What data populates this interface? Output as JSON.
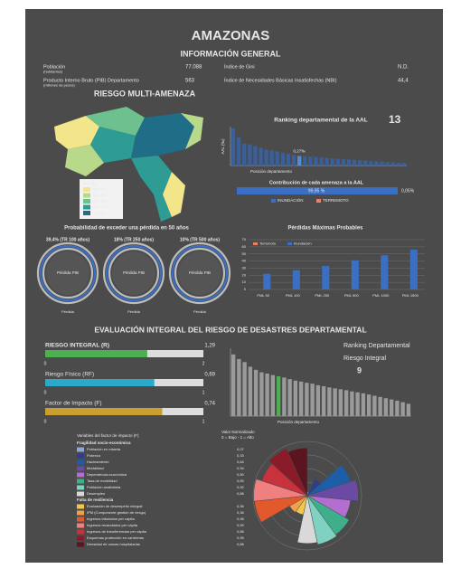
{
  "title": "AMAZONAS",
  "general": {
    "heading": "INFORMACIÓN GENERAL",
    "rows": [
      {
        "label": "Población",
        "note": "(habitantes)",
        "value": "77.088",
        "label2": "Índice de Gini",
        "value2": "N.D."
      },
      {
        "label": "Producto Interno Bruto (PIB) Departamento",
        "note": "(millones de pesos)",
        "value": "563",
        "label2": "Índice de Necesidades Básicas Insatisfechas (NBI)",
        "value2": "44,4"
      }
    ]
  },
  "multi": {
    "heading": "RIESGO MULTI-AMENAZA",
    "map_legend": {
      "title": "AAL (‰)",
      "items": [
        "0,0 - 0,1",
        "0,1 - 0,3",
        "0,3 - 0,5",
        "0,5 - 1,0",
        "1,0 - 2,0"
      ],
      "colors": [
        "#f3e58a",
        "#b9d98a",
        "#6cc18e",
        "#2e9c94",
        "#1f6d86"
      ]
    },
    "ranking": {
      "title": "Ranking departamental de la AAL",
      "rank": 13,
      "y_label": "AAL (‰)",
      "x_label": "Posición departamento",
      "highlight_label": "0,27‰",
      "color": "#3a5f9a",
      "highlight_color": "#4f8fd8",
      "ylim": [
        0,
        1.1
      ],
      "values": [
        1.05,
        0.8,
        0.62,
        0.6,
        0.55,
        0.5,
        0.45,
        0.42,
        0.4,
        0.36,
        0.33,
        0.3,
        0.27,
        0.26,
        0.25,
        0.24,
        0.23,
        0.22,
        0.2,
        0.19,
        0.18,
        0.17,
        0.16,
        0.15,
        0.14,
        0.13,
        0.12,
        0.11,
        0.1,
        0.09,
        0.08,
        0.07
      ]
    },
    "contribution": {
      "title": "Contribución de cada amenaza a la AAL",
      "series": [
        {
          "name": "INUNDACIÓN",
          "color": "#3b6fc4"
        },
        {
          "name": "TERREMOTO",
          "color": "#e8826a"
        }
      ],
      "values": [
        99.95,
        0.05
      ],
      "value_labels": [
        "99,95 %",
        "0,05%"
      ]
    }
  },
  "pe50": {
    "title": "Probabilidad de exceder una pérdida en 50 años",
    "donuts": [
      {
        "label": "39,4% (TR 100 años)",
        "center": "Pérdida PIB",
        "bottom": "Pérdida"
      },
      {
        "label": "18% (TR 250 años)",
        "center": "Pérdida PIB",
        "bottom": "Pérdida"
      },
      {
        "label": "10% (TR 500 años)",
        "center": "Pérdida PIB",
        "bottom": "Pérdida"
      }
    ]
  },
  "pml": {
    "type": "bar",
    "title": "Pérdidas Máximas Probables",
    "categories": [
      "PML 50",
      "PML 100",
      "PML 250",
      "PML 500",
      "PML 1000",
      "PML 1500"
    ],
    "series": [
      {
        "name": "Terremoto",
        "color": "#e8826a",
        "values": [
          0,
          0,
          0,
          0,
          0,
          0
        ]
      },
      {
        "name": "Inundación",
        "color": "#3b6fc4",
        "values": [
          22,
          27,
          33,
          41,
          48,
          56
        ]
      }
    ],
    "ylim": [
      0,
      70
    ],
    "yticks": [
      0,
      10,
      20,
      30,
      40,
      50,
      60,
      70
    ]
  },
  "integral": {
    "heading": "EVALUACIÓN INTEGRAL DEL RIESGO DE DESASTRES DEPARTAMENTAL",
    "bars": [
      {
        "label": "RIESGO INTEGRAL (R)",
        "value": 1.29,
        "value_label": "1,29",
        "min": 0,
        "max": 2,
        "color": "#4caf50"
      },
      {
        "label": "Riesgo Físico (RF)",
        "value": 0.69,
        "value_label": "0,69",
        "min": 0,
        "max": 1,
        "color": "#2aa9c9"
      },
      {
        "label": "Factor de Impacto (F)",
        "value": 0.74,
        "value_label": "0,74",
        "min": 0,
        "max": 1,
        "color": "#c9a030"
      }
    ],
    "ranking": {
      "title": "Ranking Departamental",
      "subtitle": "Riesgo Integral",
      "rank": 9,
      "x_label": "Posición departamento",
      "color": "#9a9a9a",
      "highlight_color": "#4caf50",
      "ylim": [
        0,
        2.2
      ],
      "values": [
        2.0,
        1.85,
        1.75,
        1.6,
        1.5,
        1.42,
        1.38,
        1.33,
        1.29,
        1.25,
        1.2,
        1.15,
        1.12,
        1.08,
        1.05,
        1.0,
        0.97,
        0.93,
        0.9,
        0.87,
        0.84,
        0.8,
        0.77,
        0.74,
        0.7,
        0.66,
        0.62,
        0.58,
        0.54,
        0.5,
        0.45,
        0.4
      ]
    }
  },
  "impact": {
    "title": "Variables del factor de impacto (F)",
    "polar_title": "Valor Normalizado",
    "polar_subtitle": "0 = Bajo - 1 = Alto",
    "groups": [
      {
        "name": "Fragilidad socio-económica",
        "items": [
          {
            "label": "Población en miseria",
            "value": 0.07,
            "value_label": "0,07",
            "color": "#8fa6d8"
          },
          {
            "label": "Pobreza",
            "value": 0.33,
            "value_label": "0,33",
            "color": "#2d3f8a"
          },
          {
            "label": "Hacinamiento",
            "value": 0.84,
            "value_label": "0,84",
            "color": "#1c5fa8"
          },
          {
            "label": "Mortalidad",
            "value": 0.94,
            "value_label": "0,94",
            "color": "#6b4aa3"
          },
          {
            "label": "Dependencia económica",
            "value": 0.8,
            "value_label": "0,80",
            "color": "#b46ed0"
          },
          {
            "label": "Tasa de morbilidad",
            "value": 0.89,
            "value_label": "0,89",
            "color": "#3fae8a"
          },
          {
            "label": "Población analfabeta",
            "value": 0.92,
            "value_label": "0,92",
            "color": "#7fd1c1"
          },
          {
            "label": "Desempleo",
            "value": 0.88,
            "value_label": "0,88",
            "color": "#d9d9d9"
          }
        ]
      },
      {
        "name": "Falta de resiliencia",
        "items": [
          {
            "label": "Evaluación de desempeño integral",
            "value": 0.36,
            "value_label": "0,36",
            "color": "#f2c84b"
          },
          {
            "label": "IPM (Componente gestión de riesgo)",
            "value": 0.38,
            "value_label": "0,38",
            "color": "#f0a04b"
          },
          {
            "label": "Ingresos tributarios per cápita",
            "value": 0.98,
            "value_label": "0,98",
            "color": "#e2592c"
          },
          {
            "label": "Ingresos recaudados per cápita",
            "value": 0.99,
            "value_label": "0,99",
            "color": "#f08080"
          },
          {
            "label": "Ingresos de transferencias per cápita",
            "value": 0.88,
            "value_label": "0,88",
            "color": "#c8323c"
          },
          {
            "label": "Esquemas protección en carreteras",
            "value": 0.95,
            "value_label": "0,95",
            "color": "#8a1c2a"
          },
          {
            "label": "Densidad de camas hospitalarias",
            "value": 0.88,
            "value_label": "0,88",
            "color": "#5a1520"
          }
        ]
      }
    ]
  }
}
